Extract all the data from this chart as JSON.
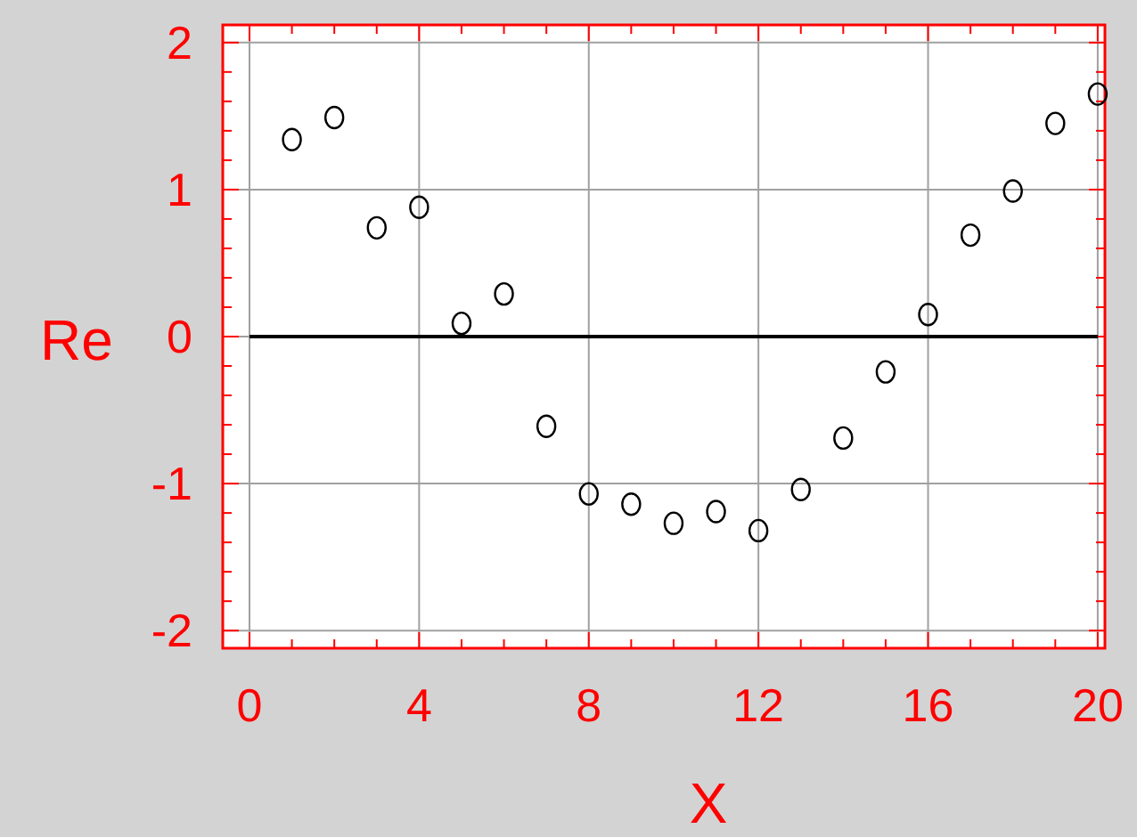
{
  "chart_data": {
    "type": "scatter",
    "xlabel": "X",
    "ylabel": "Re",
    "xlim": [
      -0.63,
      20.17
    ],
    "ylim": [
      -2.12,
      2.12
    ],
    "xticks": [
      0,
      {
        "value": 1,
        "label": null
      },
      {
        "value": 2,
        "label": null
      },
      {
        "value": 3,
        "label": null
      },
      4,
      {
        "value": 5,
        "label": null
      },
      {
        "value": 6,
        "label": null
      },
      {
        "value": 7,
        "label": null
      },
      8,
      {
        "value": 9,
        "label": null
      },
      {
        "value": 10,
        "label": null
      },
      {
        "value": 11,
        "label": null
      },
      12,
      {
        "value": 13,
        "label": null
      },
      {
        "value": 14,
        "label": null
      },
      {
        "value": 15,
        "label": null
      },
      16,
      {
        "value": 17,
        "label": null
      },
      {
        "value": 18,
        "label": null
      },
      {
        "value": 19,
        "label": null
      },
      20
    ],
    "yticks": [
      -2,
      {
        "value": -1.8,
        "label": null
      },
      {
        "value": -1.6,
        "label": null
      },
      {
        "value": -1.4,
        "label": null
      },
      {
        "value": -1.2,
        "label": null
      },
      -1,
      {
        "value": -0.8,
        "label": null
      },
      {
        "value": -0.6,
        "label": null
      },
      {
        "value": -0.4,
        "label": null
      },
      {
        "value": -0.2,
        "label": null
      },
      0,
      {
        "value": 0.2,
        "label": null
      },
      {
        "value": 0.4,
        "label": null
      },
      {
        "value": 0.6,
        "label": null
      },
      {
        "value": 0.8,
        "label": null
      },
      1,
      {
        "value": 1.2,
        "label": null
      },
      {
        "value": 1.4,
        "label": null
      },
      {
        "value": 1.6,
        "label": null
      },
      {
        "value": 1.8,
        "label": null
      },
      2
    ],
    "grid": true,
    "series": [
      {
        "marker": "circle",
        "color": "#000000",
        "x": [
          1,
          2,
          3,
          4,
          5,
          6,
          7,
          8,
          9,
          10,
          11,
          12,
          13,
          14,
          15,
          16,
          17,
          18,
          19,
          20
        ],
        "values": [
          1.34,
          1.49,
          0.74,
          0.88,
          0.09,
          0.29,
          -0.61,
          -1.07,
          -1.14,
          -1.27,
          -1.19,
          -1.32,
          -1.04,
          -0.69,
          -0.24,
          0.15,
          0.69,
          0.99,
          1.45,
          1.65
        ]
      },
      {
        "type": "line",
        "color": "#000000",
        "x": [
          0,
          20
        ],
        "values": [
          0,
          0
        ]
      }
    ]
  }
}
